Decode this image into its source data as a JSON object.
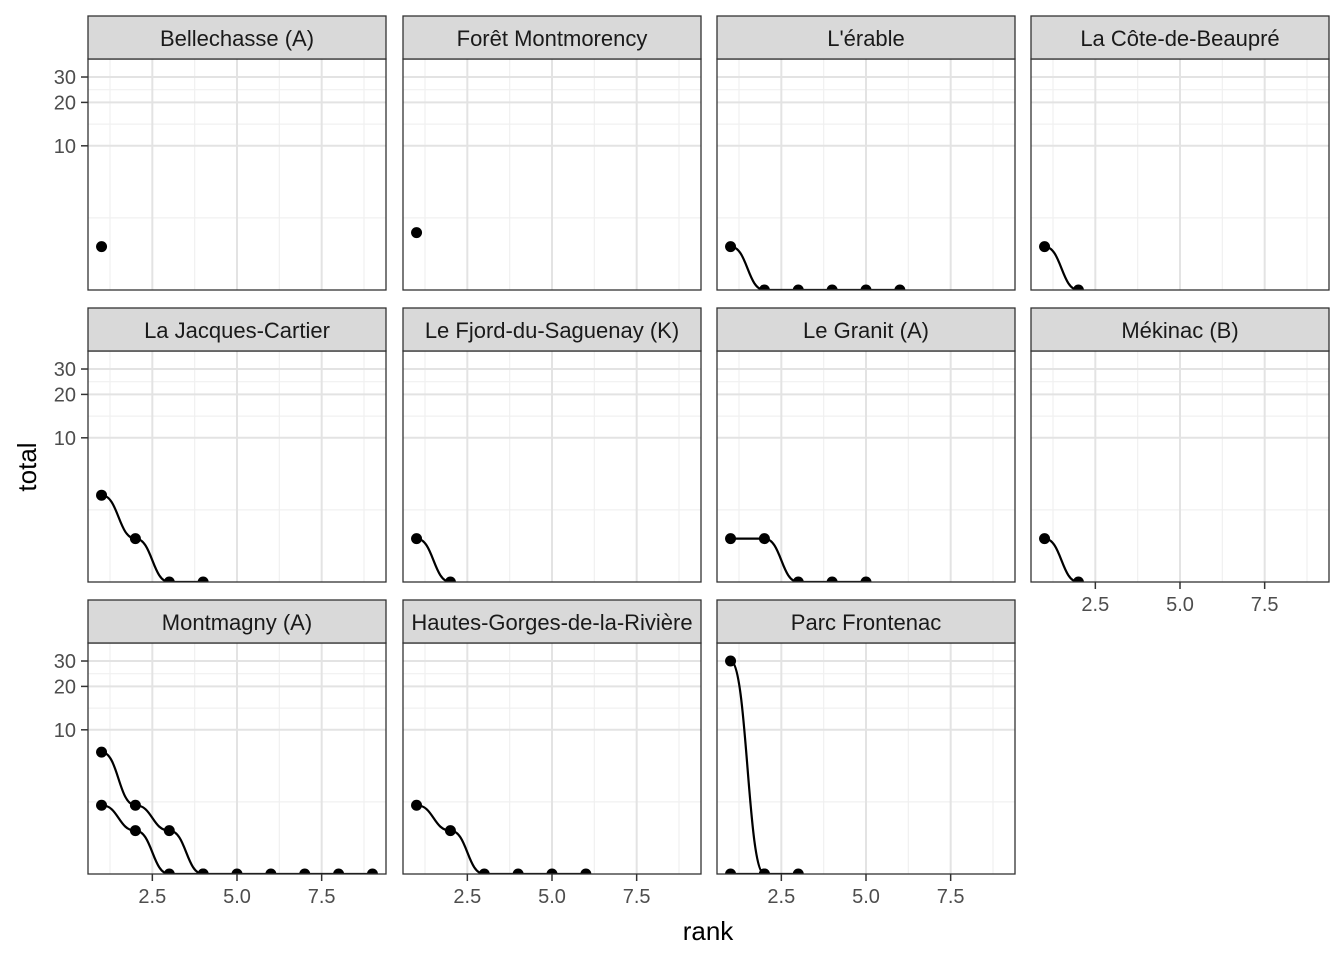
{
  "chart_data": {
    "type": "line",
    "xlabel": "rank",
    "ylabel": "total",
    "y_scale": "log",
    "xlim": [
      0.6,
      9.4
    ],
    "ylim": [
      1,
      40
    ],
    "x_ticks": [
      2.5,
      5.0,
      7.5
    ],
    "x_tick_labels": [
      "2.5",
      "5.0",
      "7.5"
    ],
    "y_ticks": [
      10,
      20,
      30
    ],
    "y_tick_labels": [
      "10",
      "20",
      "30"
    ],
    "grid": true,
    "legend": "none",
    "facets": [
      {
        "label": "Bellechasse (A)",
        "series": [
          {
            "x": [
              1
            ],
            "y": [
              2
            ]
          }
        ]
      },
      {
        "label": "Forêt Montmorency",
        "series": [
          {
            "x": [
              1
            ],
            "y": [
              2.5
            ]
          }
        ]
      },
      {
        "label": "L'érable",
        "series": [
          {
            "x": [
              1,
              2,
              3,
              4,
              5,
              6
            ],
            "y": [
              2,
              1,
              1,
              1,
              1,
              1
            ]
          }
        ]
      },
      {
        "label": "La Côte-de-Beaupré",
        "series": [
          {
            "x": [
              1,
              2
            ],
            "y": [
              2,
              1
            ]
          }
        ]
      },
      {
        "label": "La Jacques-Cartier",
        "series": [
          {
            "x": [
              1,
              2,
              3,
              4
            ],
            "y": [
              4,
              2,
              1,
              1
            ]
          }
        ]
      },
      {
        "label": "Le Fjord-du-Saguenay (K)",
        "series": [
          {
            "x": [
              1,
              2
            ],
            "y": [
              2,
              1
            ]
          }
        ]
      },
      {
        "label": "Le Granit (A)",
        "series": [
          {
            "x": [
              1,
              2,
              3,
              4,
              5
            ],
            "y": [
              2,
              2,
              1,
              1,
              1
            ]
          }
        ]
      },
      {
        "label": "Mékinac (B)",
        "series": [
          {
            "x": [
              1,
              2
            ],
            "y": [
              2,
              1
            ]
          }
        ]
      },
      {
        "label": "Montmagny (A)",
        "series": [
          {
            "x": [
              1,
              2,
              3,
              4,
              5,
              6,
              7,
              8,
              9
            ],
            "y": [
              7,
              3,
              2,
              1,
              1,
              1,
              1,
              1,
              1
            ]
          },
          {
            "x": [
              1,
              2,
              3,
              4
            ],
            "y": [
              3,
              2,
              1,
              1
            ]
          }
        ]
      },
      {
        "label": "Hautes-Gorges-de-la-Rivière",
        "series": [
          {
            "x": [
              1,
              2,
              3,
              4,
              5,
              6
            ],
            "y": [
              3,
              2,
              1,
              1,
              1,
              1
            ]
          }
        ]
      },
      {
        "label": "Parc Frontenac",
        "series": [
          {
            "x": [
              1,
              2
            ],
            "y": [
              30,
              1
            ]
          },
          {
            "x": [
              1,
              2,
              3
            ],
            "y": [
              1,
              1,
              1
            ]
          }
        ]
      }
    ]
  }
}
